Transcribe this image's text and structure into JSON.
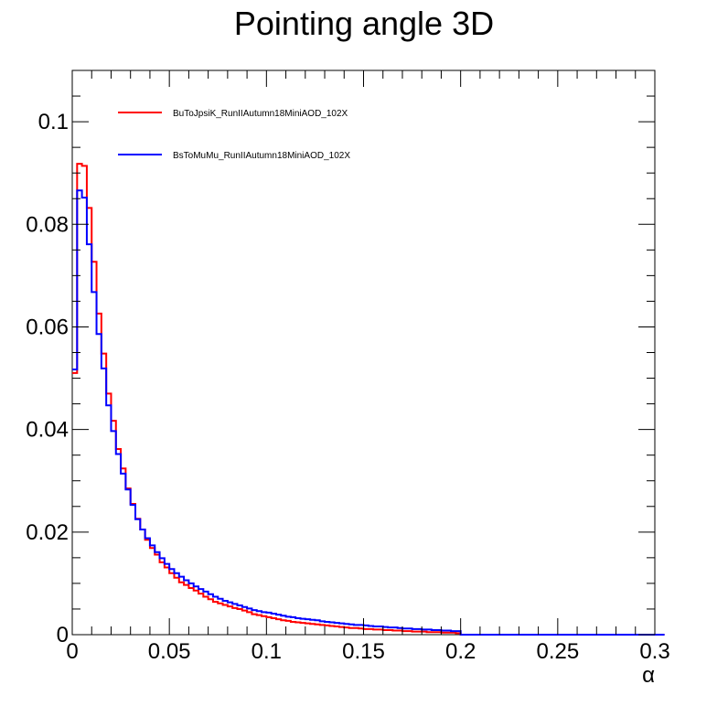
{
  "chart_data": {
    "type": "line",
    "style": "step-histogram",
    "title": "Pointing angle 3D",
    "xlabel": "α",
    "ylabel": "",
    "xlim": [
      0,
      0.3
    ],
    "ylim": [
      0,
      0.11
    ],
    "grid": false,
    "legend_position": "top-left",
    "x_ticks": [
      {
        "value": 0,
        "label": "0"
      },
      {
        "value": 0.05,
        "label": "0.05"
      },
      {
        "value": 0.1,
        "label": "0.1"
      },
      {
        "value": 0.15,
        "label": "0.15"
      },
      {
        "value": 0.2,
        "label": "0.2"
      },
      {
        "value": 0.25,
        "label": "0.25"
      },
      {
        "value": 0.3,
        "label": "0.3"
      }
    ],
    "y_ticks": [
      {
        "value": 0,
        "label": "0"
      },
      {
        "value": 0.02,
        "label": "0.02"
      },
      {
        "value": 0.04,
        "label": "0.04"
      },
      {
        "value": 0.06,
        "label": "0.06"
      },
      {
        "value": 0.08,
        "label": "0.08"
      },
      {
        "value": 0.1,
        "label": "0.1"
      }
    ],
    "bin_width": 0.0025,
    "series": [
      {
        "name": "BuToJpsiK_RunIIAutumn18MiniAOD_102X",
        "color": "#ff0000",
        "values": [
          0.051,
          0.0918,
          0.0914,
          0.0832,
          0.0727,
          0.0626,
          0.0548,
          0.047,
          0.0417,
          0.0362,
          0.0324,
          0.0285,
          0.0255,
          0.0226,
          0.0205,
          0.0185,
          0.0169,
          0.0156,
          0.0141,
          0.0131,
          0.012,
          0.0111,
          0.0102,
          0.0097,
          0.0091,
          0.0086,
          0.008,
          0.0074,
          0.0069,
          0.0064,
          0.0061,
          0.0058,
          0.0055,
          0.0052,
          0.005,
          0.0047,
          0.0044,
          0.004,
          0.0038,
          0.0036,
          0.0034,
          0.0032,
          0.003,
          0.0028,
          0.0027,
          0.0025,
          0.0024,
          0.0023,
          0.0022,
          0.0021,
          0.002,
          0.0019,
          0.0018,
          0.0017,
          0.0016,
          0.0015,
          0.0014,
          0.0013,
          0.0013,
          0.0012,
          0.0011,
          0.0011,
          0.001,
          0.001,
          0.0009,
          0.0009,
          0.0008,
          0.0008,
          0.0007,
          0.0007,
          0.0006,
          0.0006,
          0.0006,
          0.0005,
          0.0005,
          0.0005,
          0.0004,
          0.0004,
          0.0004,
          0.0003,
          0,
          0,
          0,
          0,
          0,
          0,
          0,
          0,
          0,
          0,
          0,
          0,
          0,
          0,
          0,
          0,
          0,
          0,
          0,
          0,
          0,
          0,
          0,
          0,
          0,
          0,
          0,
          0,
          0,
          0,
          0,
          0,
          0,
          0,
          0,
          0,
          0,
          0,
          0,
          0,
          0,
          0
        ]
      },
      {
        "name": "BsToMuMu_RunIIAutumn18MiniAOD_102X",
        "color": "#0000ff",
        "values": [
          0.0517,
          0.0866,
          0.0852,
          0.0761,
          0.0668,
          0.0586,
          0.0519,
          0.0447,
          0.0397,
          0.0352,
          0.0314,
          0.0283,
          0.0253,
          0.0225,
          0.0205,
          0.0188,
          0.0174,
          0.0161,
          0.0149,
          0.0138,
          0.0128,
          0.012,
          0.0113,
          0.0106,
          0.01,
          0.0094,
          0.0089,
          0.0084,
          0.0079,
          0.0074,
          0.007,
          0.0066,
          0.0063,
          0.006,
          0.0057,
          0.0054,
          0.0051,
          0.0048,
          0.0046,
          0.0044,
          0.0043,
          0.0041,
          0.0039,
          0.0037,
          0.0035,
          0.0034,
          0.0032,
          0.0031,
          0.003,
          0.0029,
          0.0028,
          0.0026,
          0.0025,
          0.0024,
          0.0023,
          0.0022,
          0.0021,
          0.002,
          0.0019,
          0.0019,
          0.0018,
          0.0017,
          0.0016,
          0.0016,
          0.0015,
          0.0014,
          0.0014,
          0.0013,
          0.0012,
          0.0012,
          0.0011,
          0.0011,
          0.001,
          0.001,
          0.0009,
          0.0009,
          0.0008,
          0.0008,
          0.0007,
          0.0007,
          0,
          0,
          0,
          0,
          0,
          0,
          0,
          0,
          0,
          0,
          0,
          0,
          0,
          0,
          0,
          0,
          0,
          0,
          0,
          0,
          0,
          0,
          0,
          0,
          0,
          0,
          0,
          0,
          0,
          0,
          0,
          0,
          0,
          0,
          0,
          0,
          0,
          0,
          0,
          0,
          0,
          0
        ]
      }
    ]
  }
}
